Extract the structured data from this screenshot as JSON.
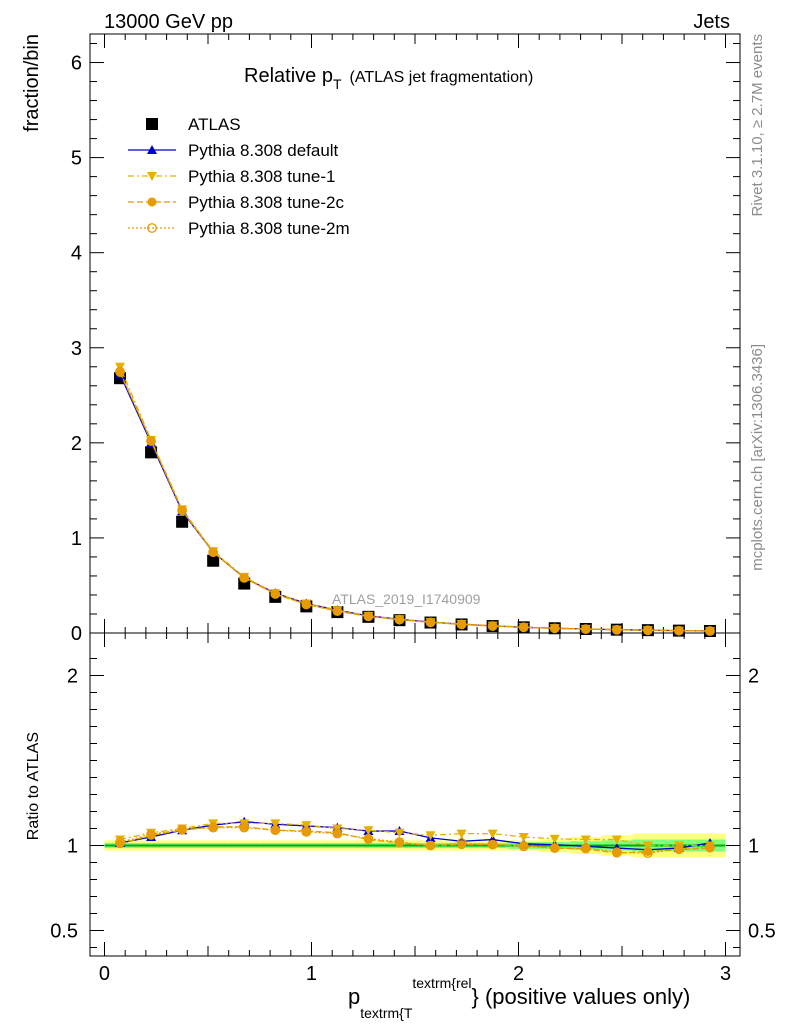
{
  "header": {
    "energy_label": "13000 GeV pp",
    "process_label": "Jets"
  },
  "side_labels": {
    "rivet": "Rivet 3.1.10, ≥ 2.7M events",
    "source": "mcplots.cern.ch [arXiv:1306.3436]"
  },
  "watermark": "ATLAS_2019_I1740909",
  "colors": {
    "atlas": "#000000",
    "default": "#0000cc",
    "tune1": "#e6b000",
    "tune2c": "#e69b00",
    "tune2m": "#e69b00",
    "band_inner": "#7fff7f",
    "band_outer": "#ffff7f",
    "ratio_line": "#00aa00"
  },
  "chart_data": [
    {
      "type": "line",
      "title_main": "Relative p",
      "title_sub": "T",
      "title_rest": "(ATLAS jet fragmentation)",
      "ylabel": "fraction/bin",
      "xlim": [
        -0.07,
        3.07
      ],
      "ylim": [
        0,
        6.3
      ],
      "y_ticks": [
        0,
        1,
        2,
        3,
        4,
        5,
        6
      ],
      "legend_position": "top-left",
      "x": [
        0.075,
        0.225,
        0.375,
        0.525,
        0.675,
        0.825,
        0.975,
        1.125,
        1.275,
        1.425,
        1.575,
        1.725,
        1.875,
        2.025,
        2.175,
        2.325,
        2.475,
        2.625,
        2.775,
        2.925
      ],
      "series": [
        {
          "name": "ATLAS",
          "key": "atlas",
          "marker": "square",
          "values": [
            2.68,
            1.9,
            1.17,
            0.76,
            0.52,
            0.38,
            0.28,
            0.22,
            0.17,
            0.135,
            0.11,
            0.09,
            0.073,
            0.06,
            0.05,
            0.042,
            0.035,
            0.03,
            0.025,
            0.021
          ]
        },
        {
          "name": "Pythia 8.308 default",
          "key": "default",
          "marker": "triangle-up",
          "dash": "",
          "values": [
            2.72,
            2.0,
            1.28,
            0.85,
            0.58,
            0.42,
            0.31,
            0.24,
            0.18,
            0.145,
            0.115,
            0.092,
            0.075,
            0.06,
            0.05,
            0.042,
            0.035,
            0.03,
            0.025,
            0.021
          ]
        },
        {
          "name": "Pythia 8.308 tune-1",
          "key": "tune1",
          "marker": "triangle-down",
          "dash": "6,3,2,3",
          "values": [
            2.8,
            2.03,
            1.3,
            0.86,
            0.59,
            0.42,
            0.31,
            0.24,
            0.18,
            0.145,
            0.115,
            0.095,
            0.077,
            0.062,
            0.051,
            0.043,
            0.036,
            0.03,
            0.025,
            0.021
          ]
        },
        {
          "name": "Pythia 8.308 tune-2c",
          "key": "tune2c",
          "marker": "circle",
          "dash": "6,3",
          "values": [
            2.74,
            2.02,
            1.29,
            0.85,
            0.58,
            0.41,
            0.3,
            0.23,
            0.175,
            0.14,
            0.112,
            0.09,
            0.073,
            0.06,
            0.049,
            0.041,
            0.034,
            0.029,
            0.024,
            0.021
          ]
        },
        {
          "name": "Pythia 8.308 tune-2m",
          "key": "tune2m",
          "marker": "open-circle",
          "dash": "2,2",
          "values": [
            2.75,
            2.02,
            1.29,
            0.85,
            0.58,
            0.41,
            0.3,
            0.23,
            0.175,
            0.14,
            0.112,
            0.09,
            0.073,
            0.06,
            0.049,
            0.041,
            0.034,
            0.029,
            0.024,
            0.021
          ]
        }
      ]
    },
    {
      "type": "line",
      "ylabel": "Ratio to ATLAS",
      "xlabel_main": "p",
      "xlabel_sub": "textrm{T",
      "xlabel_sup": "textrm{rel",
      "xlabel_rest": "} (positive values only)",
      "xlim": [
        -0.07,
        3.07
      ],
      "ylim": [
        0.35,
        2.25
      ],
      "x_ticks": [
        0,
        1,
        2,
        3
      ],
      "y_ticks": [
        0.5,
        1,
        2
      ],
      "x": [
        0.075,
        0.225,
        0.375,
        0.525,
        0.675,
        0.825,
        0.975,
        1.125,
        1.275,
        1.425,
        1.575,
        1.725,
        1.875,
        2.025,
        2.175,
        2.325,
        2.475,
        2.625,
        2.775,
        2.925
      ],
      "band_outer": [
        0.03,
        0.03,
        0.03,
        0.03,
        0.03,
        0.03,
        0.03,
        0.03,
        0.03,
        0.03,
        0.03,
        0.03,
        0.03,
        0.03,
        0.04,
        0.05,
        0.06,
        0.07,
        0.07,
        0.07
      ],
      "band_inner": [
        0.015,
        0.015,
        0.015,
        0.015,
        0.015,
        0.015,
        0.015,
        0.015,
        0.015,
        0.015,
        0.015,
        0.015,
        0.015,
        0.02,
        0.02,
        0.025,
        0.03,
        0.035,
        0.035,
        0.035
      ],
      "series": [
        {
          "name": "Pythia 8.308 default",
          "key": "default",
          "marker": "triangle-up",
          "dash": "",
          "values": [
            1.015,
            1.05,
            1.09,
            1.12,
            1.14,
            1.125,
            1.115,
            1.105,
            1.085,
            1.085,
            1.045,
            1.025,
            1.035,
            1.01,
            1.005,
            0.995,
            0.985,
            0.975,
            0.985,
            1.015
          ]
        },
        {
          "name": "Pythia 8.308 tune-1",
          "key": "tune1",
          "marker": "triangle-down",
          "dash": "6,3,2,3",
          "values": [
            1.035,
            1.075,
            1.1,
            1.13,
            1.13,
            1.13,
            1.12,
            1.1,
            1.09,
            1.075,
            1.06,
            1.07,
            1.07,
            1.05,
            1.04,
            1.035,
            1.035,
            1.0,
            1.0,
            1.0
          ]
        },
        {
          "name": "Pythia 8.308 tune-2c",
          "key": "tune2c",
          "marker": "circle",
          "dash": "6,3",
          "values": [
            1.01,
            1.06,
            1.09,
            1.11,
            1.11,
            1.09,
            1.085,
            1.075,
            1.035,
            1.015,
            1.0,
            1.005,
            1.005,
            1.0,
            0.985,
            0.98,
            0.955,
            0.965,
            0.975,
            0.985
          ]
        },
        {
          "name": "Pythia 8.308 tune-2m",
          "key": "tune2m",
          "marker": "open-circle",
          "dash": "2,2",
          "values": [
            1.02,
            1.065,
            1.095,
            1.105,
            1.105,
            1.09,
            1.08,
            1.07,
            1.04,
            1.02,
            1.0,
            1.015,
            1.005,
            0.995,
            0.985,
            0.985,
            0.96,
            0.955,
            0.98,
            0.99
          ]
        }
      ]
    }
  ]
}
